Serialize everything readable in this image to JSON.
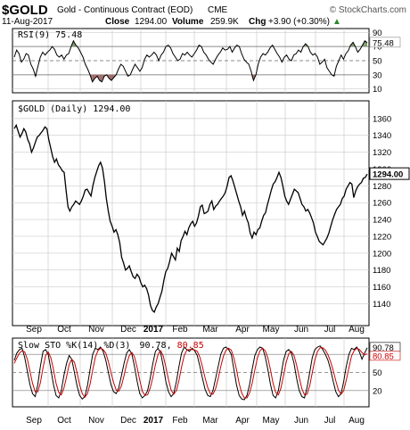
{
  "header": {
    "symbol": "$GOLD",
    "name": "Gold - Continuous Contract (EOD)",
    "exchange": "CME",
    "date": "11-Aug-2017",
    "close_label": "Close",
    "close_value": "1294.00",
    "volume_label": "Volume",
    "volume_value": "259.9K",
    "chg_label": "Chg",
    "chg_value": "+3.90 (+0.30%)",
    "chg_arrow": "▲",
    "brand": "© StockCharts.com"
  },
  "colors": {
    "line": "#000000",
    "grid": "#cccccc",
    "rsi_fill": "#9e6b6b",
    "rsi_fill_high": "#7a9a6a",
    "stoch_k": "#000000",
    "stoch_d": "#cc0000",
    "frame": "#000000"
  },
  "chart_data": [
    {
      "type": "line",
      "panel": "RSI",
      "label": "RSI(9) 75.48",
      "current_value": "75.48",
      "ylim": [
        10,
        90
      ],
      "yticks": [
        "90",
        "70",
        "50",
        "30",
        "10"
      ],
      "reference_lines": [
        70,
        50,
        30
      ],
      "fill_above": 70,
      "fill_below": 30,
      "values": [
        55,
        65,
        60,
        48,
        52,
        60,
        58,
        45,
        38,
        28,
        42,
        55,
        62,
        58,
        62,
        65,
        70,
        66,
        58,
        55,
        58,
        52,
        58,
        60,
        70,
        78,
        72,
        68,
        62,
        55,
        45,
        38,
        30,
        20,
        25,
        28,
        22,
        20,
        28,
        30,
        25,
        22,
        26,
        30,
        38,
        45,
        42,
        35,
        28,
        30,
        38,
        45,
        40,
        35,
        40,
        52,
        58,
        55,
        58,
        62,
        58,
        50,
        58,
        62,
        70,
        72,
        68,
        60,
        55,
        50,
        52,
        60,
        58,
        62,
        58,
        55,
        60,
        65,
        72,
        70,
        62,
        58,
        52,
        48,
        45,
        52,
        58,
        62,
        68,
        65,
        66,
        70,
        62,
        68,
        72,
        70,
        60,
        52,
        48,
        45,
        35,
        22,
        30,
        45,
        55,
        60,
        58,
        62,
        68,
        72,
        66,
        60,
        55,
        48,
        55,
        58,
        52,
        50,
        58,
        60,
        65,
        62,
        70,
        74,
        70,
        62,
        58,
        60,
        55,
        45,
        48,
        52,
        40,
        35,
        30,
        28,
        42,
        50,
        58,
        52,
        60,
        64,
        72,
        76,
        70,
        62,
        66,
        72,
        78,
        75.48
      ]
    },
    {
      "type": "line",
      "panel": "Price",
      "label": "$GOLD (Daily) 1294.00",
      "current_value": "1294.00",
      "ylim": [
        1130,
        1365
      ],
      "yticks": [
        "1360",
        "1340",
        "1320",
        "1300",
        "1280",
        "1260",
        "1240",
        "1220",
        "1200",
        "1180",
        "1160",
        "1140"
      ],
      "values": [
        1348,
        1352,
        1345,
        1338,
        1342,
        1348,
        1344,
        1335,
        1330,
        1320,
        1325,
        1332,
        1338,
        1340,
        1343,
        1346,
        1350,
        1348,
        1335,
        1325,
        1315,
        1308,
        1312,
        1305,
        1302,
        1298,
        1296,
        1275,
        1255,
        1250,
        1255,
        1258,
        1262,
        1260,
        1258,
        1262,
        1268,
        1275,
        1276,
        1272,
        1268,
        1280,
        1290,
        1297,
        1304,
        1308,
        1301,
        1285,
        1265,
        1250,
        1238,
        1232,
        1225,
        1228,
        1222,
        1212,
        1195,
        1188,
        1180,
        1182,
        1185,
        1178,
        1172,
        1170,
        1175,
        1172,
        1165,
        1160,
        1162,
        1158,
        1150,
        1138,
        1132,
        1130,
        1136,
        1140,
        1148,
        1155,
        1168,
        1178,
        1182,
        1190,
        1200,
        1196,
        1192,
        1206,
        1202,
        1215,
        1220,
        1226,
        1222,
        1230,
        1235,
        1238,
        1232,
        1236,
        1244,
        1255,
        1257,
        1247,
        1248,
        1250,
        1258,
        1262,
        1252,
        1256,
        1258,
        1262,
        1265,
        1268,
        1272,
        1280,
        1290,
        1292,
        1286,
        1278,
        1270,
        1262,
        1255,
        1245,
        1250,
        1242,
        1236,
        1224,
        1218,
        1225,
        1222,
        1228,
        1230,
        1238,
        1245,
        1248,
        1258,
        1266,
        1275,
        1282,
        1285,
        1290,
        1296,
        1290,
        1280,
        1268,
        1262,
        1258,
        1264,
        1270,
        1276,
        1274,
        1272,
        1265,
        1258,
        1255,
        1250,
        1252,
        1248,
        1242,
        1236,
        1225,
        1220,
        1214,
        1212,
        1210,
        1214,
        1218,
        1224,
        1232,
        1240,
        1246,
        1252,
        1255,
        1258,
        1265,
        1268,
        1276,
        1280,
        1284,
        1282,
        1266,
        1274,
        1279,
        1282,
        1284,
        1289,
        1290,
        1294
      ]
    },
    {
      "type": "line",
      "panel": "Slow Stochastic",
      "label_prefix": "Slow STO %K(14) %D(3)",
      "k_value": "90.78",
      "d_value": "80.85",
      "ylim": [
        0,
        100
      ],
      "yticks": [
        "80",
        "50",
        "20"
      ],
      "reference_lines": [
        80,
        50,
        20
      ],
      "series": [
        {
          "name": "%K(14)",
          "values": [
            70,
            82,
            88,
            90,
            75,
            52,
            30,
            15,
            10,
            30,
            60,
            85,
            88,
            80,
            55,
            30,
            12,
            8,
            20,
            45,
            65,
            78,
            72,
            50,
            28,
            12,
            6,
            10,
            28,
            55,
            80,
            90,
            88,
            92,
            85,
            70,
            50,
            30,
            18,
            15,
            25,
            45,
            65,
            82,
            88,
            80,
            60,
            35,
            15,
            8,
            12,
            20,
            40,
            65,
            85,
            90,
            82,
            60,
            35,
            18,
            10,
            15,
            35,
            60,
            82,
            92,
            88,
            85,
            90,
            86,
            78,
            60,
            40,
            22,
            12,
            10,
            20,
            40,
            60,
            80,
            90,
            92,
            88,
            80,
            55,
            30,
            12,
            6,
            5,
            12,
            30,
            55,
            78,
            88,
            92,
            90,
            76,
            55,
            30,
            12,
            8,
            20,
            45,
            70,
            85,
            88,
            82,
            65,
            40,
            20,
            10,
            8,
            25,
            50,
            75,
            88,
            92,
            94,
            88,
            80,
            70,
            55,
            35,
            18,
            10,
            15,
            35,
            60,
            80,
            90,
            88,
            92,
            84,
            72,
            82,
            90.78
          ]
        },
        {
          "name": "%D(3)",
          "values": [
            65,
            74,
            82,
            86,
            84,
            72,
            52,
            32,
            18,
            18,
            33,
            58,
            78,
            84,
            74,
            55,
            32,
            17,
            13,
            24,
            43,
            63,
            72,
            67,
            50,
            30,
            15,
            9,
            15,
            31,
            54,
            75,
            86,
            90,
            88,
            82,
            68,
            50,
            33,
            21,
            19,
            28,
            45,
            64,
            78,
            83,
            76,
            58,
            37,
            19,
            12,
            13,
            24,
            42,
            63,
            80,
            86,
            77,
            59,
            38,
            21,
            14,
            20,
            37,
            59,
            78,
            87,
            88,
            88,
            87,
            85,
            75,
            59,
            41,
            25,
            15,
            14,
            23,
            40,
            60,
            77,
            87,
            90,
            87,
            74,
            55,
            32,
            16,
            8,
            8,
            16,
            32,
            54,
            74,
            86,
            90,
            86,
            74,
            54,
            32,
            17,
            13,
            24,
            45,
            67,
            81,
            85,
            78,
            62,
            42,
            23,
            13,
            14,
            28,
            50,
            71,
            85,
            91,
            91,
            87,
            79,
            68,
            53,
            36,
            21,
            14,
            20,
            37,
            58,
            77,
            86,
            90,
            88,
            83,
            79,
            80.85
          ]
        }
      ]
    }
  ],
  "x_axis": {
    "months": [
      "Sep",
      "Oct",
      "Nov",
      "Dec",
      "2017",
      "Feb",
      "Mar",
      "Apr",
      "May",
      "Jun",
      "Jul",
      "Aug"
    ],
    "year_label": "2017"
  }
}
